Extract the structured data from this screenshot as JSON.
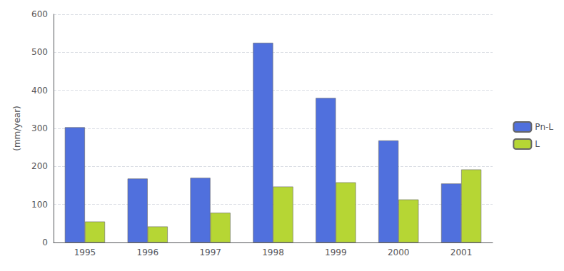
{
  "chart_data": {
    "type": "bar",
    "categories": [
      "1995",
      "1996",
      "1997",
      "1998",
      "1999",
      "2000",
      "2001"
    ],
    "series": [
      {
        "name": "Pn-L",
        "values": [
          303,
          168,
          170,
          525,
          380,
          268,
          155
        ]
      },
      {
        "name": "L",
        "values": [
          55,
          42,
          78,
          147,
          158,
          113,
          192
        ]
      }
    ],
    "ylabel": "(mm/year)",
    "ylim": [
      0,
      600
    ],
    "yticks": [
      0,
      100,
      200,
      300,
      400,
      500,
      600
    ],
    "grid": true,
    "legend": "right"
  }
}
